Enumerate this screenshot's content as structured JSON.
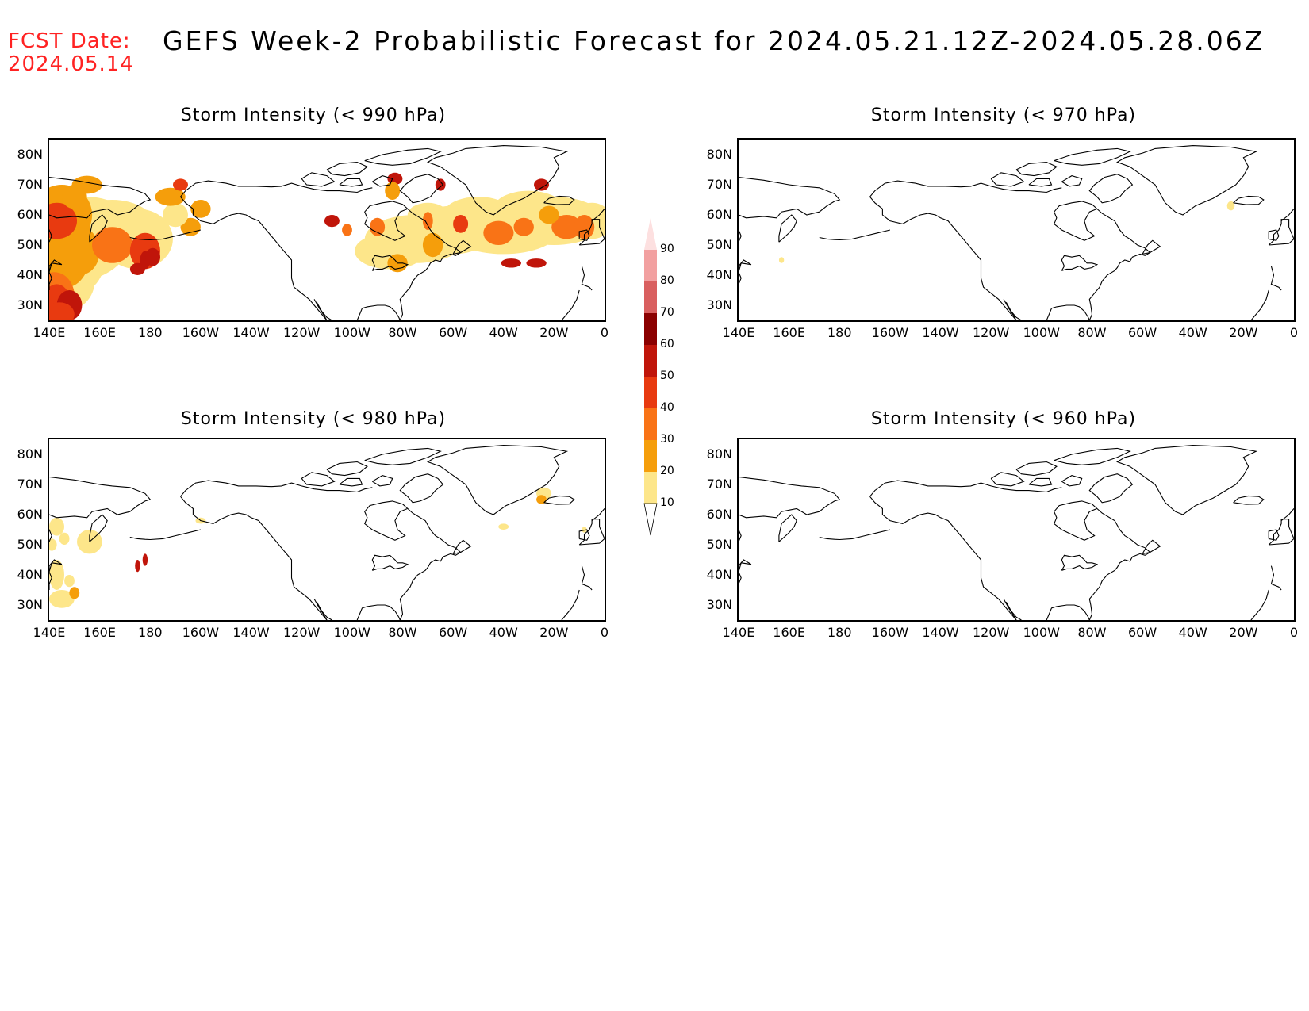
{
  "header": {
    "fcst_line1": "FCST Date:",
    "fcst_line2": "2024.05.14",
    "title": "GEFS Week-2 Probabilistic Forecast for 2024.05.21.12Z-2024.05.28.06Z"
  },
  "panels": [
    {
      "id": "p990",
      "title": "Storm Intensity (< 990 hPa)"
    },
    {
      "id": "p970",
      "title": "Storm Intensity (< 970 hPa)"
    },
    {
      "id": "p980",
      "title": "Storm Intensity (< 980 hPa)"
    },
    {
      "id": "p960",
      "title": "Storm Intensity (< 960 hPa)"
    }
  ],
  "axes": {
    "lat_labels": [
      "80N",
      "70N",
      "60N",
      "50N",
      "40N",
      "30N"
    ],
    "lon_labels": [
      "140E",
      "160E",
      "180",
      "160W",
      "140W",
      "120W",
      "100W",
      "80W",
      "60W",
      "40W",
      "20W",
      "0"
    ]
  },
  "colorbar": {
    "levels": [
      "10",
      "20",
      "30",
      "40",
      "50",
      "60",
      "70",
      "80",
      "90"
    ],
    "colors": [
      "#fff6c4",
      "#fde68a",
      "#f59e0b",
      "#f97316",
      "#e83a10",
      "#c0150a",
      "#8b0000",
      "#d95f5f",
      "#f2a0a0",
      "#fde0e0"
    ]
  },
  "colors": {
    "fcst_text": "#ff2222",
    "coastline": "#000000"
  }
}
